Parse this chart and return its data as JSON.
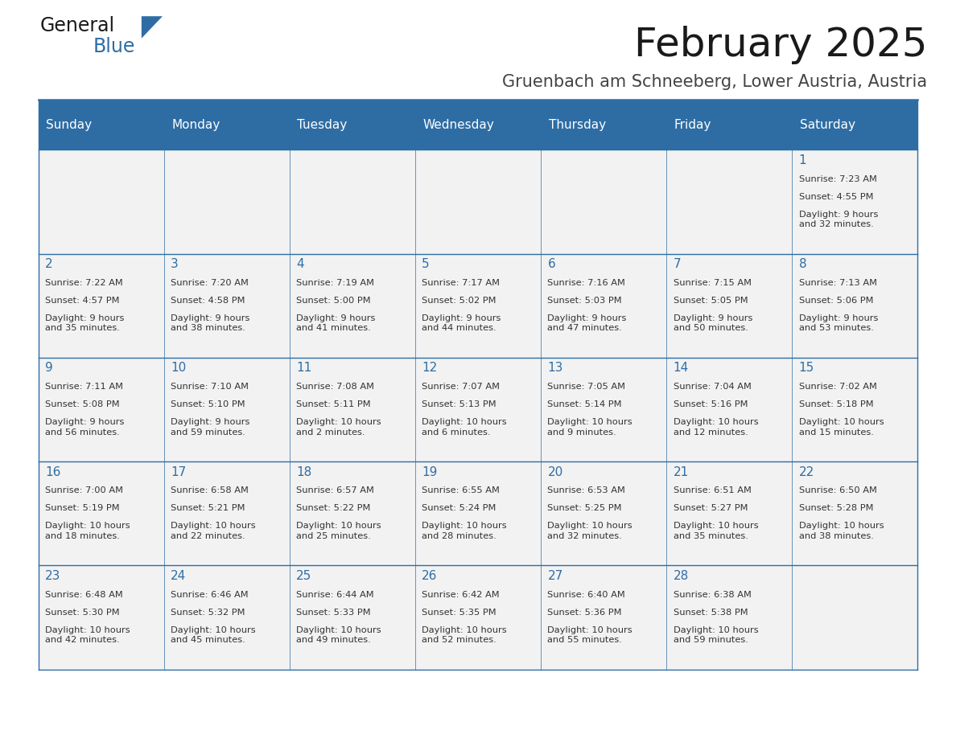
{
  "title": "February 2025",
  "subtitle": "Gruenbach am Schneeberg, Lower Austria, Austria",
  "days_of_week": [
    "Sunday",
    "Monday",
    "Tuesday",
    "Wednesday",
    "Thursday",
    "Friday",
    "Saturday"
  ],
  "header_bg": "#2E6DA4",
  "header_text": "#FFFFFF",
  "cell_bg": "#F2F2F2",
  "border_color": "#2E6DA4",
  "day_num_color": "#2E6DA4",
  "text_color": "#333333",
  "calendar": [
    [
      null,
      null,
      null,
      null,
      null,
      null,
      {
        "day": 1,
        "sunrise": "7:23 AM",
        "sunset": "4:55 PM",
        "daylight": "9 hours\nand 32 minutes."
      }
    ],
    [
      {
        "day": 2,
        "sunrise": "7:22 AM",
        "sunset": "4:57 PM",
        "daylight": "9 hours\nand 35 minutes."
      },
      {
        "day": 3,
        "sunrise": "7:20 AM",
        "sunset": "4:58 PM",
        "daylight": "9 hours\nand 38 minutes."
      },
      {
        "day": 4,
        "sunrise": "7:19 AM",
        "sunset": "5:00 PM",
        "daylight": "9 hours\nand 41 minutes."
      },
      {
        "day": 5,
        "sunrise": "7:17 AM",
        "sunset": "5:02 PM",
        "daylight": "9 hours\nand 44 minutes."
      },
      {
        "day": 6,
        "sunrise": "7:16 AM",
        "sunset": "5:03 PM",
        "daylight": "9 hours\nand 47 minutes."
      },
      {
        "day": 7,
        "sunrise": "7:15 AM",
        "sunset": "5:05 PM",
        "daylight": "9 hours\nand 50 minutes."
      },
      {
        "day": 8,
        "sunrise": "7:13 AM",
        "sunset": "5:06 PM",
        "daylight": "9 hours\nand 53 minutes."
      }
    ],
    [
      {
        "day": 9,
        "sunrise": "7:11 AM",
        "sunset": "5:08 PM",
        "daylight": "9 hours\nand 56 minutes."
      },
      {
        "day": 10,
        "sunrise": "7:10 AM",
        "sunset": "5:10 PM",
        "daylight": "9 hours\nand 59 minutes."
      },
      {
        "day": 11,
        "sunrise": "7:08 AM",
        "sunset": "5:11 PM",
        "daylight": "10 hours\nand 2 minutes."
      },
      {
        "day": 12,
        "sunrise": "7:07 AM",
        "sunset": "5:13 PM",
        "daylight": "10 hours\nand 6 minutes."
      },
      {
        "day": 13,
        "sunrise": "7:05 AM",
        "sunset": "5:14 PM",
        "daylight": "10 hours\nand 9 minutes."
      },
      {
        "day": 14,
        "sunrise": "7:04 AM",
        "sunset": "5:16 PM",
        "daylight": "10 hours\nand 12 minutes."
      },
      {
        "day": 15,
        "sunrise": "7:02 AM",
        "sunset": "5:18 PM",
        "daylight": "10 hours\nand 15 minutes."
      }
    ],
    [
      {
        "day": 16,
        "sunrise": "7:00 AM",
        "sunset": "5:19 PM",
        "daylight": "10 hours\nand 18 minutes."
      },
      {
        "day": 17,
        "sunrise": "6:58 AM",
        "sunset": "5:21 PM",
        "daylight": "10 hours\nand 22 minutes."
      },
      {
        "day": 18,
        "sunrise": "6:57 AM",
        "sunset": "5:22 PM",
        "daylight": "10 hours\nand 25 minutes."
      },
      {
        "day": 19,
        "sunrise": "6:55 AM",
        "sunset": "5:24 PM",
        "daylight": "10 hours\nand 28 minutes."
      },
      {
        "day": 20,
        "sunrise": "6:53 AM",
        "sunset": "5:25 PM",
        "daylight": "10 hours\nand 32 minutes."
      },
      {
        "day": 21,
        "sunrise": "6:51 AM",
        "sunset": "5:27 PM",
        "daylight": "10 hours\nand 35 minutes."
      },
      {
        "day": 22,
        "sunrise": "6:50 AM",
        "sunset": "5:28 PM",
        "daylight": "10 hours\nand 38 minutes."
      }
    ],
    [
      {
        "day": 23,
        "sunrise": "6:48 AM",
        "sunset": "5:30 PM",
        "daylight": "10 hours\nand 42 minutes."
      },
      {
        "day": 24,
        "sunrise": "6:46 AM",
        "sunset": "5:32 PM",
        "daylight": "10 hours\nand 45 minutes."
      },
      {
        "day": 25,
        "sunrise": "6:44 AM",
        "sunset": "5:33 PM",
        "daylight": "10 hours\nand 49 minutes."
      },
      {
        "day": 26,
        "sunrise": "6:42 AM",
        "sunset": "5:35 PM",
        "daylight": "10 hours\nand 52 minutes."
      },
      {
        "day": 27,
        "sunrise": "6:40 AM",
        "sunset": "5:36 PM",
        "daylight": "10 hours\nand 55 minutes."
      },
      {
        "day": 28,
        "sunrise": "6:38 AM",
        "sunset": "5:38 PM",
        "daylight": "10 hours\nand 59 minutes."
      },
      null
    ]
  ]
}
